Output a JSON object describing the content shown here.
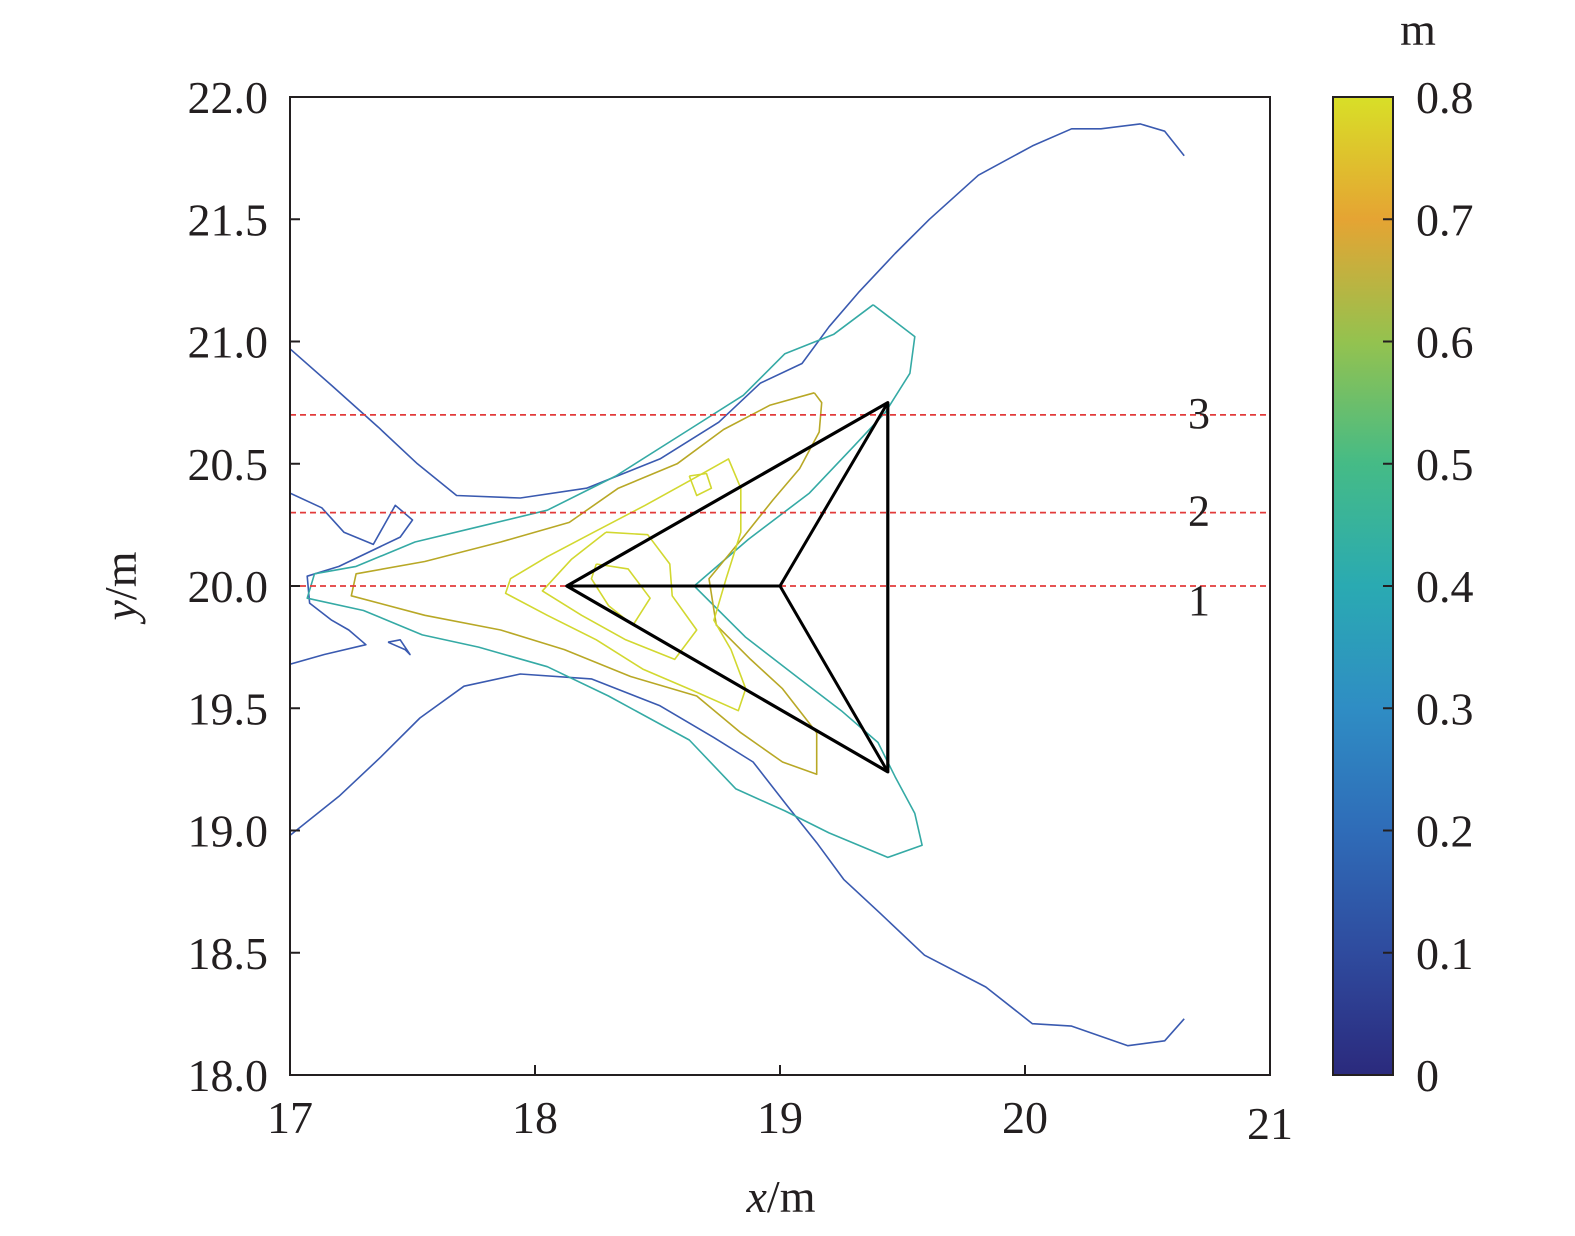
{
  "chart_data": {
    "type": "contour",
    "xlabel": {
      "var": "x",
      "unit": "/m"
    },
    "ylabel": {
      "var": "y",
      "unit": "/m"
    },
    "xlim": [
      17,
      21
    ],
    "ylim": [
      18.0,
      22.0
    ],
    "x_ticks": [
      "17",
      "18",
      "19",
      "20",
      "21"
    ],
    "x_tick_values": [
      17,
      18,
      19,
      20,
      21
    ],
    "y_ticks": [
      "18.0",
      "18.5",
      "19.0",
      "19.5",
      "20.0",
      "20.5",
      "21.0",
      "21.5",
      "22.0"
    ],
    "y_tick_values": [
      18.0,
      18.5,
      19.0,
      19.5,
      20.0,
      20.5,
      21.0,
      21.5,
      22.0
    ],
    "colorbar": {
      "unit": "m",
      "ticks": [
        "0",
        "0.1",
        "0.2",
        "0.3",
        "0.4",
        "0.5",
        "0.6",
        "0.7",
        "0.8"
      ],
      "tick_values": [
        0,
        0.1,
        0.2,
        0.3,
        0.4,
        0.5,
        0.6,
        0.7,
        0.8
      ],
      "range": [
        0,
        0.8
      ],
      "colormap": [
        "#2b2a7d",
        "#2f4b9e",
        "#2f6cb8",
        "#2f8dc4",
        "#2aaab2",
        "#45bb86",
        "#94c24f",
        "#e5a433",
        "#d8df27"
      ]
    },
    "reference_lines": [
      {
        "label": "1",
        "y": 20.0,
        "color": "#e23b3b"
      },
      {
        "label": "2",
        "y": 20.3,
        "color": "#e23b3b"
      },
      {
        "label": "3",
        "y": 20.7,
        "color": "#e23b3b"
      }
    ],
    "structure": {
      "outer_triangle": [
        [
          18.13,
          20.0
        ],
        [
          19.44,
          20.75
        ],
        [
          19.44,
          19.24
        ]
      ],
      "center": [
        19.0,
        20.0
      ],
      "color": "#000000"
    },
    "contour_levels": [
      {
        "level": 0.2,
        "color": "#3a5ab0",
        "paths": [
          [
            [
              20.65,
              21.76
            ],
            [
              20.57,
              21.86
            ],
            [
              20.47,
              21.89
            ],
            [
              20.31,
              21.87
            ],
            [
              20.19,
              21.87
            ],
            [
              20.03,
              21.8
            ],
            [
              19.81,
              21.68
            ],
            [
              19.61,
              21.5
            ],
            [
              19.47,
              21.36
            ],
            [
              19.32,
              21.2
            ],
            [
              19.2,
              21.06
            ],
            [
              19.09,
              20.91
            ],
            [
              18.92,
              20.83
            ],
            [
              18.75,
              20.67
            ],
            [
              18.51,
              20.52
            ],
            [
              18.21,
              20.4
            ],
            [
              17.94,
              20.36
            ],
            [
              17.68,
              20.37
            ],
            [
              17.52,
              20.5
            ],
            [
              17.36,
              20.65
            ],
            [
              17.17,
              20.82
            ],
            [
              17.0,
              20.97
            ]
          ],
          [
            [
              20.65,
              18.23
            ],
            [
              20.57,
              18.14
            ],
            [
              20.42,
              18.12
            ],
            [
              20.19,
              18.2
            ],
            [
              20.03,
              18.21
            ],
            [
              19.84,
              18.36
            ],
            [
              19.59,
              18.49
            ],
            [
              19.41,
              18.66
            ],
            [
              19.26,
              18.8
            ],
            [
              19.15,
              18.95
            ],
            [
              19.03,
              19.1
            ],
            [
              18.89,
              19.28
            ],
            [
              18.73,
              19.38
            ],
            [
              18.51,
              19.51
            ],
            [
              18.23,
              19.62
            ],
            [
              17.94,
              19.64
            ],
            [
              17.71,
              19.59
            ],
            [
              17.53,
              19.46
            ],
            [
              17.37,
              19.3
            ],
            [
              17.2,
              19.14
            ],
            [
              17.0,
              18.98
            ]
          ],
          [
            [
              17.0,
              20.38
            ],
            [
              17.13,
              20.32
            ],
            [
              17.22,
              20.22
            ],
            [
              17.34,
              20.17
            ],
            [
              17.43,
              20.33
            ],
            [
              17.5,
              20.27
            ],
            [
              17.45,
              20.2
            ],
            [
              17.2,
              20.08
            ],
            [
              17.07,
              20.04
            ],
            [
              17.08,
              19.93
            ],
            [
              17.17,
              19.86
            ],
            [
              17.24,
              19.82
            ],
            [
              17.31,
              19.76
            ],
            [
              17.14,
              19.72
            ],
            [
              17.0,
              19.68
            ]
          ],
          [
            [
              17.4,
              19.77
            ],
            [
              17.47,
              19.74
            ],
            [
              17.49,
              19.72
            ],
            [
              17.45,
              19.78
            ],
            [
              17.4,
              19.77
            ]
          ]
        ]
      },
      {
        "level": 0.4,
        "color": "#35aaa5",
        "paths": [
          [
            [
              19.38,
              21.15
            ],
            [
              19.22,
              21.03
            ],
            [
              19.02,
              20.95
            ],
            [
              18.85,
              20.78
            ],
            [
              18.63,
              20.64
            ],
            [
              18.33,
              20.45
            ],
            [
              18.05,
              20.31
            ],
            [
              17.76,
              20.24
            ],
            [
              17.51,
              20.18
            ],
            [
              17.27,
              20.08
            ],
            [
              17.1,
              20.05
            ],
            [
              17.07,
              19.95
            ],
            [
              17.3,
              19.9
            ],
            [
              17.54,
              19.8
            ],
            [
              17.77,
              19.75
            ],
            [
              18.05,
              19.67
            ],
            [
              18.3,
              19.55
            ],
            [
              18.63,
              19.37
            ],
            [
              18.82,
              19.17
            ],
            [
              19.02,
              19.08
            ],
            [
              19.2,
              18.99
            ],
            [
              19.44,
              18.89
            ],
            [
              19.58,
              18.94
            ],
            [
              19.55,
              19.07
            ],
            [
              19.47,
              19.22
            ],
            [
              19.4,
              19.36
            ],
            [
              19.25,
              19.49
            ],
            [
              19.08,
              19.62
            ],
            [
              18.86,
              19.79
            ],
            [
              18.65,
              20.0
            ],
            [
              18.87,
              20.19
            ],
            [
              19.12,
              20.38
            ],
            [
              19.3,
              20.57
            ],
            [
              19.43,
              20.71
            ],
            [
              19.53,
              20.87
            ],
            [
              19.55,
              21.02
            ],
            [
              19.38,
              21.15
            ]
          ]
        ]
      },
      {
        "level": 0.6,
        "color": "#b8a826",
        "paths": [
          [
            [
              19.14,
              20.79
            ],
            [
              18.96,
              20.74
            ],
            [
              18.77,
              20.64
            ],
            [
              18.58,
              20.5
            ],
            [
              18.34,
              20.4
            ],
            [
              18.14,
              20.26
            ],
            [
              17.86,
              20.18
            ],
            [
              17.55,
              20.1
            ],
            [
              17.27,
              20.05
            ],
            [
              17.25,
              19.96
            ],
            [
              17.55,
              19.88
            ],
            [
              17.86,
              19.82
            ],
            [
              18.12,
              19.74
            ],
            [
              18.39,
              19.63
            ],
            [
              18.66,
              19.55
            ],
            [
              18.84,
              19.4
            ],
            [
              19.01,
              19.28
            ],
            [
              19.15,
              19.23
            ],
            [
              19.15,
              19.4
            ],
            [
              19.01,
              19.58
            ],
            [
              18.88,
              19.7
            ],
            [
              18.74,
              19.84
            ],
            [
              18.71,
              20.03
            ],
            [
              18.85,
              20.2
            ],
            [
              18.97,
              20.35
            ],
            [
              19.08,
              20.48
            ],
            [
              19.16,
              20.63
            ],
            [
              19.17,
              20.75
            ],
            [
              19.14,
              20.79
            ]
          ]
        ]
      },
      {
        "level": 0.7,
        "color": "#d2d830",
        "paths": [
          [
            [
              18.63,
              20.43
            ],
            [
              18.45,
              20.33
            ],
            [
              18.24,
              20.22
            ],
            [
              18.05,
              20.12
            ],
            [
              17.9,
              20.03
            ],
            [
              17.88,
              19.97
            ],
            [
              18.05,
              19.88
            ],
            [
              18.25,
              19.78
            ],
            [
              18.44,
              19.66
            ],
            [
              18.65,
              19.57
            ],
            [
              18.83,
              19.49
            ],
            [
              18.86,
              19.58
            ],
            [
              18.8,
              19.74
            ],
            [
              18.73,
              19.86
            ],
            [
              18.78,
              20.03
            ],
            [
              18.84,
              20.22
            ],
            [
              18.84,
              20.4
            ],
            [
              18.79,
              20.52
            ],
            [
              18.63,
              20.43
            ]
          ],
          [
            [
              18.29,
              20.22
            ],
            [
              18.15,
              20.11
            ],
            [
              18.03,
              19.98
            ],
            [
              18.19,
              19.88
            ],
            [
              18.37,
              19.78
            ],
            [
              18.57,
              19.7
            ],
            [
              18.66,
              19.82
            ],
            [
              18.56,
              19.96
            ],
            [
              18.55,
              20.09
            ],
            [
              18.46,
              20.21
            ],
            [
              18.29,
              20.22
            ]
          ],
          [
            [
              18.25,
              20.09
            ],
            [
              18.38,
              20.07
            ],
            [
              18.47,
              19.95
            ],
            [
              18.4,
              19.84
            ],
            [
              18.3,
              19.92
            ],
            [
              18.23,
              20.03
            ],
            [
              18.25,
              20.09
            ]
          ],
          [
            [
              18.63,
              20.45
            ],
            [
              18.66,
              20.37
            ],
            [
              18.72,
              20.4
            ],
            [
              18.7,
              20.46
            ],
            [
              18.63,
              20.45
            ]
          ]
        ]
      }
    ]
  }
}
